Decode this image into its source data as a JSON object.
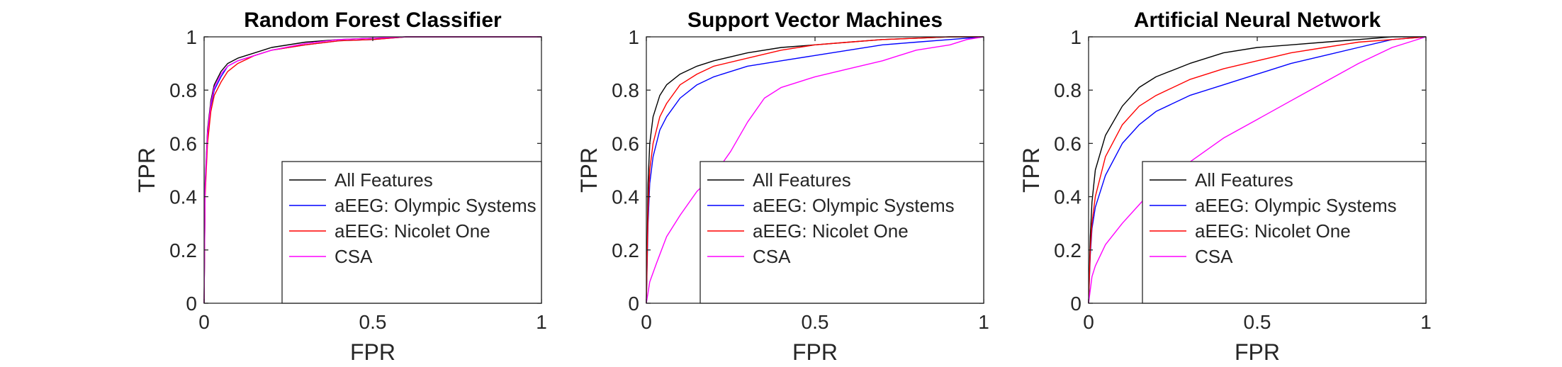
{
  "chart_data": [
    {
      "type": "line",
      "title": "Random Forest Classifier",
      "xlabel": "FPR",
      "ylabel": "TPR",
      "xlim": [
        0,
        1
      ],
      "ylim": [
        0,
        1
      ],
      "xticks": [
        "0",
        "0.5",
        "1"
      ],
      "yticks": [
        "0",
        "0.2",
        "0.4",
        "0.6",
        "0.8",
        "1"
      ],
      "grid": false,
      "legend_position": "bottom-right",
      "series": [
        {
          "name": "All Features",
          "color": "#000000",
          "x": [
            0,
            0.003,
            0.01,
            0.02,
            0.03,
            0.05,
            0.07,
            0.1,
            0.15,
            0.2,
            0.3,
            0.4,
            0.5,
            0.6,
            0.8,
            1
          ],
          "y": [
            0,
            0.45,
            0.65,
            0.76,
            0.82,
            0.87,
            0.9,
            0.92,
            0.94,
            0.96,
            0.98,
            0.99,
            0.995,
            1,
            1,
            1
          ]
        },
        {
          "name": "aEEG: Olympic Systems",
          "color": "#0000ff",
          "x": [
            0,
            0.003,
            0.01,
            0.02,
            0.03,
            0.05,
            0.07,
            0.1,
            0.15,
            0.2,
            0.3,
            0.4,
            0.5,
            0.6,
            0.8,
            1
          ],
          "y": [
            0,
            0.42,
            0.63,
            0.74,
            0.8,
            0.85,
            0.89,
            0.91,
            0.93,
            0.95,
            0.97,
            0.985,
            0.99,
            1,
            1,
            1
          ]
        },
        {
          "name": "aEEG: Nicolet One",
          "color": "#ff0000",
          "x": [
            0,
            0.003,
            0.01,
            0.02,
            0.03,
            0.05,
            0.07,
            0.1,
            0.15,
            0.2,
            0.3,
            0.4,
            0.5,
            0.6,
            0.8,
            1
          ],
          "y": [
            0,
            0.4,
            0.6,
            0.72,
            0.78,
            0.83,
            0.87,
            0.9,
            0.93,
            0.95,
            0.97,
            0.985,
            0.99,
            1,
            1,
            1
          ]
        },
        {
          "name": "CSA",
          "color": "#ff00ff",
          "x": [
            0,
            0.003,
            0.01,
            0.02,
            0.03,
            0.05,
            0.07,
            0.1,
            0.15,
            0.2,
            0.3,
            0.4,
            0.5,
            0.6,
            0.8,
            1
          ],
          "y": [
            0,
            0.43,
            0.64,
            0.75,
            0.81,
            0.86,
            0.89,
            0.91,
            0.93,
            0.95,
            0.975,
            0.99,
            0.995,
            1,
            1,
            1
          ]
        }
      ]
    },
    {
      "type": "line",
      "title": "Support Vector Machines",
      "xlabel": "FPR",
      "ylabel": "TPR",
      "xlim": [
        0,
        1
      ],
      "ylim": [
        0,
        1
      ],
      "xticks": [
        "0",
        "0.5",
        "1"
      ],
      "yticks": [
        "0",
        "0.2",
        "0.4",
        "0.6",
        "0.8",
        "1"
      ],
      "grid": false,
      "legend_position": "bottom-right",
      "series": [
        {
          "name": "All Features",
          "color": "#000000",
          "x": [
            0,
            0.005,
            0.01,
            0.02,
            0.04,
            0.06,
            0.1,
            0.15,
            0.2,
            0.3,
            0.4,
            0.5,
            0.6,
            0.7,
            0.8,
            0.9,
            1
          ],
          "y": [
            0,
            0.45,
            0.6,
            0.7,
            0.78,
            0.82,
            0.86,
            0.89,
            0.91,
            0.94,
            0.96,
            0.97,
            0.98,
            0.99,
            0.995,
            1,
            1
          ]
        },
        {
          "name": "aEEG: Olympic Systems",
          "color": "#0000ff",
          "x": [
            0,
            0.005,
            0.01,
            0.02,
            0.04,
            0.06,
            0.1,
            0.15,
            0.2,
            0.3,
            0.4,
            0.5,
            0.6,
            0.7,
            0.8,
            0.9,
            1
          ],
          "y": [
            0,
            0.3,
            0.45,
            0.55,
            0.65,
            0.7,
            0.77,
            0.82,
            0.85,
            0.89,
            0.91,
            0.93,
            0.95,
            0.97,
            0.98,
            0.99,
            1
          ]
        },
        {
          "name": "aEEG: Nicolet One",
          "color": "#ff0000",
          "x": [
            0,
            0.005,
            0.01,
            0.02,
            0.04,
            0.06,
            0.1,
            0.15,
            0.2,
            0.3,
            0.4,
            0.5,
            0.6,
            0.7,
            0.8,
            0.9,
            1
          ],
          "y": [
            0,
            0.35,
            0.5,
            0.6,
            0.7,
            0.75,
            0.82,
            0.86,
            0.89,
            0.92,
            0.95,
            0.97,
            0.98,
            0.99,
            0.995,
            1,
            1
          ]
        },
        {
          "name": "CSA",
          "color": "#ff00ff",
          "x": [
            0,
            0.01,
            0.03,
            0.06,
            0.1,
            0.15,
            0.2,
            0.25,
            0.3,
            0.35,
            0.4,
            0.45,
            0.5,
            0.6,
            0.7,
            0.8,
            0.9,
            0.95,
            1
          ],
          "y": [
            0,
            0.08,
            0.15,
            0.25,
            0.33,
            0.42,
            0.48,
            0.57,
            0.68,
            0.77,
            0.81,
            0.83,
            0.85,
            0.88,
            0.91,
            0.95,
            0.97,
            0.99,
            1
          ]
        }
      ]
    },
    {
      "type": "line",
      "title": "Artificial Neural Network",
      "xlabel": "FPR",
      "ylabel": "TPR",
      "xlim": [
        0,
        1
      ],
      "ylim": [
        0,
        1
      ],
      "xticks": [
        "0",
        "0.5",
        "1"
      ],
      "yticks": [
        "0",
        "0.2",
        "0.4",
        "0.6",
        "0.8",
        "1"
      ],
      "grid": false,
      "legend_position": "bottom-right",
      "series": [
        {
          "name": "All Features",
          "color": "#000000",
          "x": [
            0,
            0.005,
            0.01,
            0.02,
            0.05,
            0.1,
            0.15,
            0.2,
            0.3,
            0.4,
            0.5,
            0.6,
            0.7,
            0.8,
            0.9,
            1
          ],
          "y": [
            0,
            0.25,
            0.38,
            0.5,
            0.63,
            0.74,
            0.81,
            0.85,
            0.9,
            0.94,
            0.96,
            0.97,
            0.98,
            0.99,
            1,
            1
          ]
        },
        {
          "name": "aEEG: Olympic Systems",
          "color": "#0000ff",
          "x": [
            0,
            0.005,
            0.01,
            0.02,
            0.05,
            0.1,
            0.15,
            0.2,
            0.3,
            0.4,
            0.5,
            0.6,
            0.7,
            0.8,
            0.9,
            1
          ],
          "y": [
            0,
            0.18,
            0.28,
            0.36,
            0.48,
            0.6,
            0.67,
            0.72,
            0.78,
            0.82,
            0.86,
            0.9,
            0.93,
            0.96,
            0.99,
            1
          ]
        },
        {
          "name": "aEEG: Nicolet One",
          "color": "#ff0000",
          "x": [
            0,
            0.005,
            0.01,
            0.02,
            0.05,
            0.1,
            0.15,
            0.2,
            0.3,
            0.4,
            0.5,
            0.6,
            0.7,
            0.8,
            0.9,
            1
          ],
          "y": [
            0,
            0.2,
            0.3,
            0.4,
            0.55,
            0.67,
            0.74,
            0.78,
            0.84,
            0.88,
            0.91,
            0.94,
            0.96,
            0.98,
            0.99,
            1
          ]
        },
        {
          "name": "CSA",
          "color": "#ff00ff",
          "x": [
            0,
            0.005,
            0.01,
            0.02,
            0.05,
            0.1,
            0.15,
            0.2,
            0.3,
            0.4,
            0.5,
            0.6,
            0.7,
            0.8,
            0.9,
            1
          ],
          "y": [
            0,
            0.05,
            0.1,
            0.14,
            0.22,
            0.3,
            0.37,
            0.44,
            0.53,
            0.62,
            0.69,
            0.76,
            0.83,
            0.9,
            0.96,
            1
          ]
        }
      ]
    }
  ]
}
